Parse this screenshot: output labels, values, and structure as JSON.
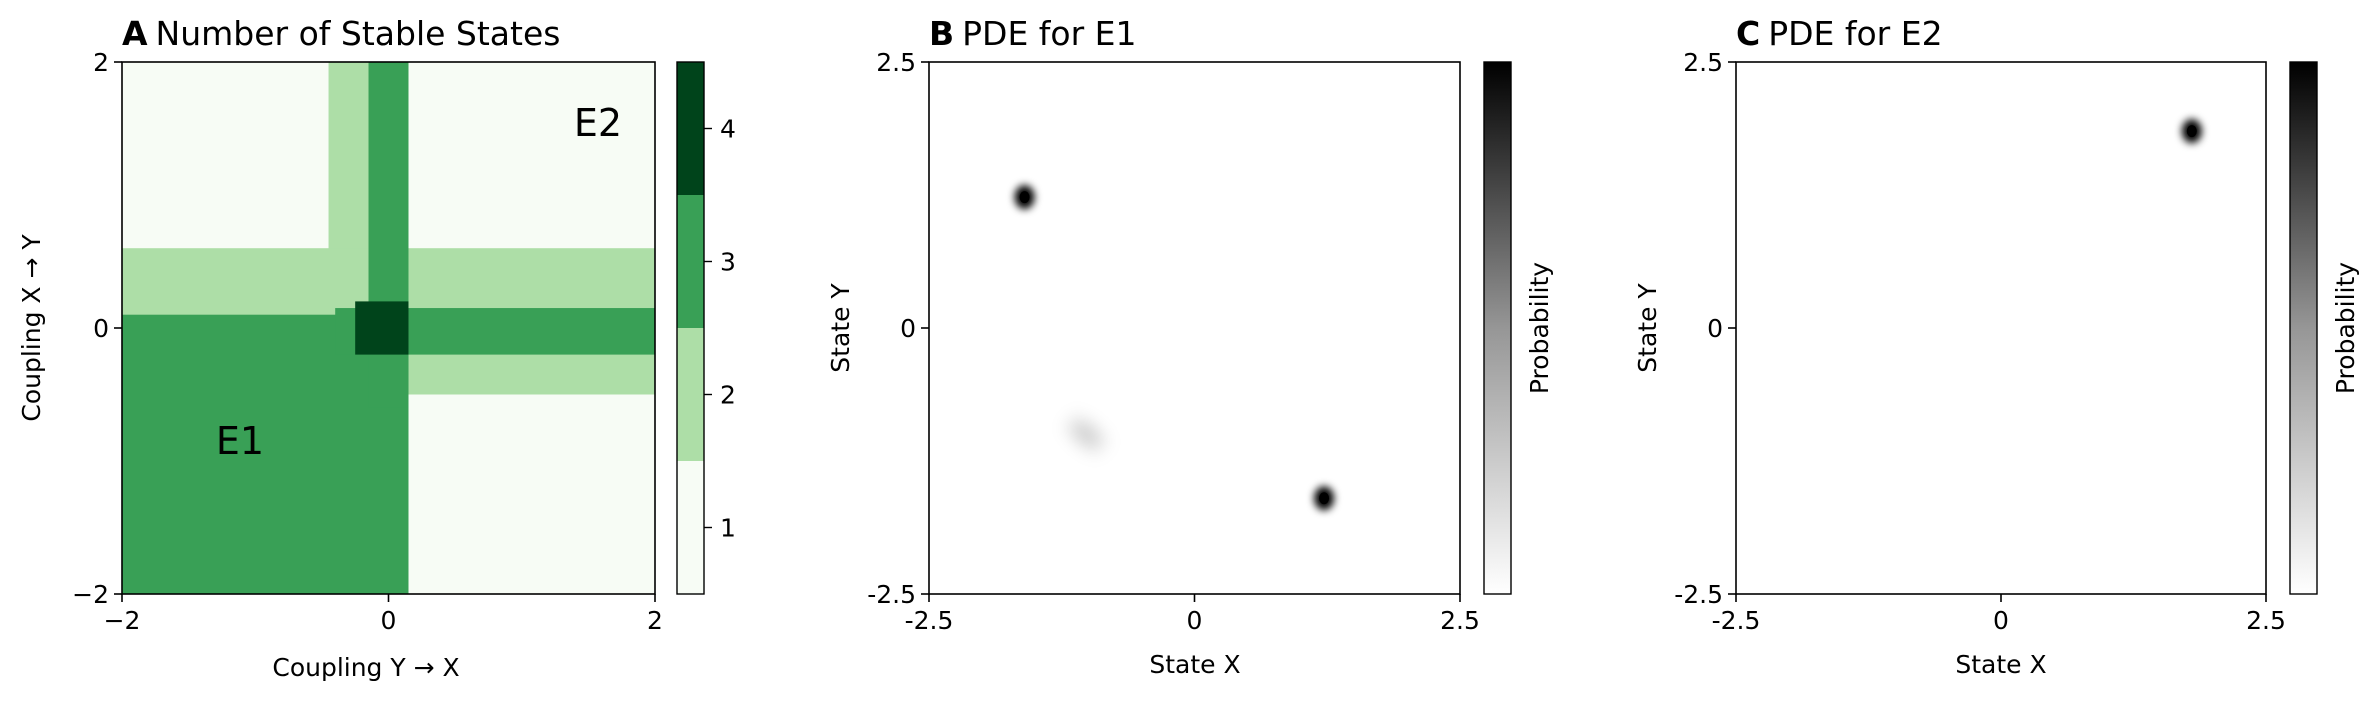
{
  "chart_data": [
    {
      "type": "heatmap",
      "panel_letter": "A",
      "title": "Number of Stable States",
      "xlabel": "Coupling Y → X",
      "ylabel": "Coupling X → Y",
      "xlim": [
        -2,
        2
      ],
      "ylim": [
        -2,
        2
      ],
      "x_ticks": [
        -2,
        0,
        2
      ],
      "y_ticks": [
        -2,
        0,
        2
      ],
      "x_tick_labels": [
        "−2",
        "0",
        "2"
      ],
      "y_tick_labels": [
        "−2",
        "0",
        "2"
      ],
      "grid": false,
      "colorbar": {
        "levels": [
          1,
          2,
          3,
          4
        ],
        "tick_labels": [
          "1",
          "2",
          "3",
          "4"
        ],
        "colors": [
          "#f7fcf5",
          "#addea7",
          "#39a056",
          "#00441b"
        ]
      },
      "regions": [
        {
          "value": 2,
          "desc": "cross band",
          "x": [
            -0.45,
            0.15
          ],
          "y": [
            -2,
            2
          ]
        },
        {
          "value": 2,
          "desc": "horizontal band",
          "x": [
            -2,
            2
          ],
          "y": [
            -0.5,
            0.6
          ]
        },
        {
          "value": 3,
          "desc": "lower-left block E1",
          "x": [
            -2,
            0.15
          ],
          "y": [
            -2,
            0.1
          ]
        },
        {
          "value": 3,
          "desc": "vertical band",
          "x": [
            -0.15,
            0.15
          ],
          "y": [
            -0.6,
            2
          ]
        },
        {
          "value": 3,
          "desc": "horizontal band",
          "x": [
            -0.4,
            2
          ],
          "y": [
            -0.2,
            0.15
          ]
        },
        {
          "value": 4,
          "desc": "center",
          "x": [
            -0.25,
            0.15
          ],
          "y": [
            -0.2,
            0.2
          ]
        }
      ],
      "annotations": [
        {
          "text": "E1",
          "x": -1.1,
          "y": -0.9
        },
        {
          "text": "E2",
          "x": 1.6,
          "y": 1.5
        }
      ]
    },
    {
      "type": "heatmap",
      "panel_letter": "B",
      "title": "PDE for E1",
      "xlabel": "State X",
      "ylabel": "State Y",
      "xlim": [
        -2.5,
        2.5
      ],
      "ylim": [
        -2.5,
        2.5
      ],
      "x_ticks": [
        -2.5,
        0,
        2.5
      ],
      "y_ticks": [
        -2.5,
        0,
        2.5
      ],
      "x_tick_labels": [
        "-2.5",
        "0",
        "2.5"
      ],
      "y_tick_labels": [
        "-2.5",
        "0",
        "2.5"
      ],
      "colorbar_label": "Probability",
      "colormap": "Greys",
      "peaks": [
        {
          "x": -1.6,
          "y": 1.23,
          "intensity": 1.0
        },
        {
          "x": 1.22,
          "y": -1.6,
          "intensity": 1.0
        },
        {
          "x": -1.02,
          "y": -1.0,
          "intensity": 0.22
        }
      ]
    },
    {
      "type": "heatmap",
      "panel_letter": "C",
      "title": "PDE for E2",
      "xlabel": "State X",
      "ylabel": "State Y",
      "xlim": [
        -2.5,
        2.5
      ],
      "ylim": [
        -2.5,
        2.5
      ],
      "x_ticks": [
        -2.5,
        0,
        2.5
      ],
      "y_ticks": [
        -2.5,
        0,
        2.5
      ],
      "x_tick_labels": [
        "-2.5",
        "0",
        "2.5"
      ],
      "y_tick_labels": [
        "-2.5",
        "0",
        "2.5"
      ],
      "colorbar_label": "Probability",
      "colormap": "Greys",
      "peaks": [
        {
          "x": 1.8,
          "y": 1.85,
          "intensity": 1.0
        }
      ]
    }
  ]
}
